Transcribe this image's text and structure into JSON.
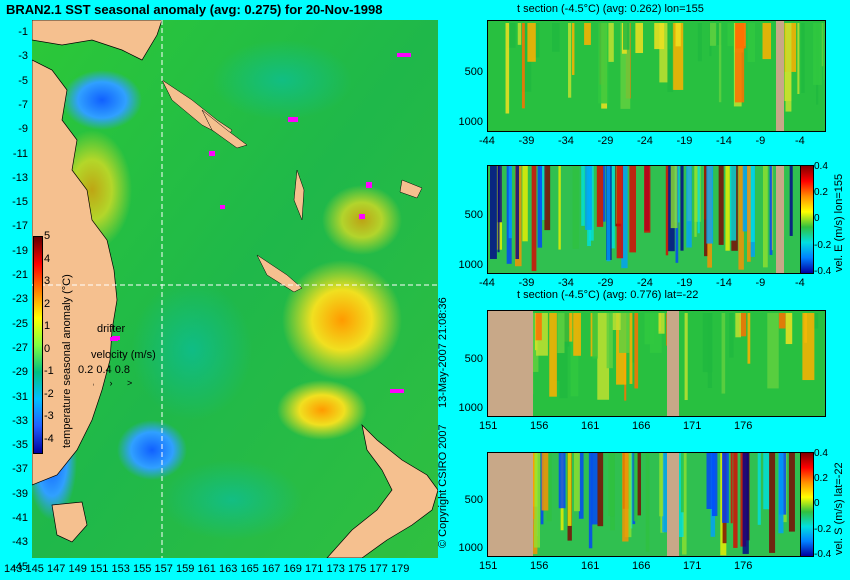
{
  "title": "BRAN2.1 SST seasonal anomaly (avg: 0.275) for 20-Nov-1998",
  "map": {
    "lat_ticks": [
      "-1",
      "-3",
      "-5",
      "-7",
      "-9",
      "-11",
      "-13",
      "-15",
      "-17",
      "-19",
      "-21",
      "-23",
      "-25",
      "-27",
      "-29",
      "-31",
      "-33",
      "-35",
      "-37",
      "-39",
      "-41",
      "-43",
      "-45"
    ],
    "lon_ticks": [
      "143",
      "145",
      "147",
      "149",
      "151",
      "153",
      "155",
      "157",
      "159",
      "161",
      "163",
      "165",
      "167",
      "169",
      "171",
      "173",
      "175",
      "177",
      "179"
    ],
    "colorbar": {
      "label": "temperature seasonal anomaly (°C)",
      "ticks": [
        "5",
        "4",
        "3",
        "2",
        "1",
        "0",
        "-1",
        "-2",
        "-3",
        "-4"
      ]
    },
    "drifter_label": "drifter",
    "velocity_label": "velocity (m/s)",
    "velocity_ticks": "0.2 0.4 0.8",
    "colors": {
      "land": "#f5c08f",
      "ocean": "#22c030",
      "drifter": "#ff00ff"
    }
  },
  "panels": [
    {
      "title": "t section (-4.5°C) (avg: 0.262) lon=155",
      "x_ticks": [
        "-44",
        "-39",
        "-34",
        "-29",
        "-24",
        "-19",
        "-14",
        "-9",
        "-4"
      ],
      "y_ticks": [
        "500",
        "1000"
      ],
      "side_label": ""
    },
    {
      "title": "",
      "x_ticks": [
        "-44",
        "-39",
        "-34",
        "-29",
        "-24",
        "-19",
        "-14",
        "-9",
        "-4"
      ],
      "y_ticks": [
        "500",
        "1000"
      ],
      "side_label": "vel. E (m/s) lon=155",
      "cb_ticks": [
        "0.4",
        "0.2",
        "0",
        "-0.2",
        "-0.4"
      ]
    },
    {
      "title": "t section (-4.5°C) (avg: 0.776) lat=-22",
      "x_ticks": [
        "151",
        "156",
        "161",
        "166",
        "171",
        "176"
      ],
      "y_ticks": [
        "500",
        "1000"
      ],
      "side_label": ""
    },
    {
      "title": "",
      "x_ticks": [
        "151",
        "156",
        "161",
        "166",
        "171",
        "176"
      ],
      "y_ticks": [
        "500",
        "1000"
      ],
      "side_label": "vel. S (m/s) lat=-22",
      "cb_ticks": [
        "0.4",
        "0.2",
        "0",
        "-0.2",
        "-0.4"
      ]
    }
  ],
  "stamp": "13-May-2007 21:08:36",
  "copyright": "© Copyright CSIRO 2007"
}
